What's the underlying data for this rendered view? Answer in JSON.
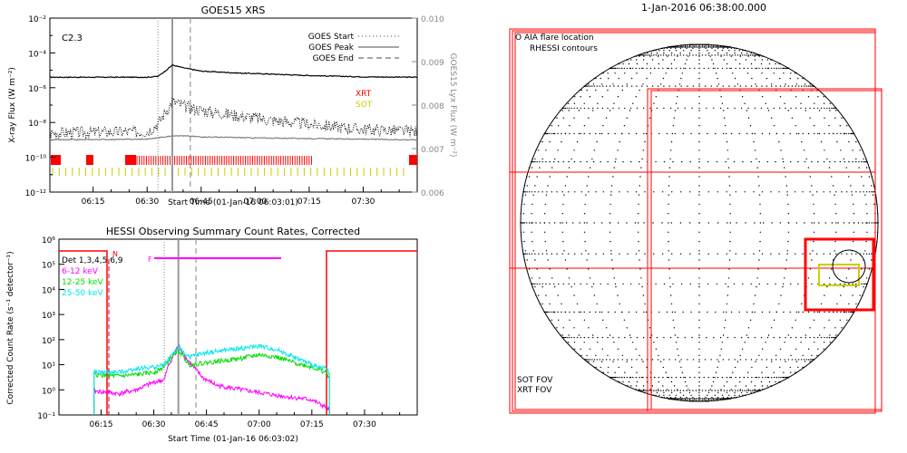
{
  "top_panel": {
    "title": "GOES15 XRS",
    "class_label": "C2.3",
    "ylabel": "X-ray Flux (W m⁻²)",
    "y2label": "GOES15 Lyx Flux (W m⁻²)",
    "xlabel": "Start Time (01-Jan-16 06:03:01)",
    "legend": [
      "GOES Start",
      "GOES Peak",
      "GOES End"
    ],
    "inst_labels": [
      "XRT",
      "SOT"
    ],
    "y_ticks": [
      "10⁻²",
      "10⁻⁴",
      "10⁻⁶",
      "10⁻⁸",
      "10⁻¹⁰",
      "10⁻¹²"
    ],
    "y2_ticks": [
      "0.010",
      "0.009",
      "0.008",
      "0.007",
      "0.006"
    ],
    "x_ticks": [
      "06:15",
      "06:30",
      "06:45",
      "07:00",
      "07:15",
      "07:30"
    ]
  },
  "bottom_panel": {
    "title": "HESSI Observing Summary Count Rates, Corrected",
    "ylabel": "Corrected Count Rate (s⁻¹ detector⁻¹)",
    "xlabel": "Start Time (01-Jan-16 06:03:02)",
    "det_label": "Det 1,3,4,5,6,9",
    "n_label": "N",
    "f_label": "F",
    "legend": [
      {
        "name": "6-12 keV",
        "color": "#ff00ff"
      },
      {
        "name": "12-25 keV",
        "color": "#00dd00"
      },
      {
        "name": "25-50 keV",
        "color": "#00e5ee"
      }
    ],
    "y_ticks": [
      "10⁶",
      "10⁵",
      "10⁴",
      "10³",
      "10²",
      "10¹",
      "10⁰",
      "10⁻¹"
    ],
    "x_ticks": [
      "06:15",
      "06:30",
      "06:45",
      "07:00",
      "07:15",
      "07:30"
    ]
  },
  "sun_panel": {
    "title": "1-Jan-2016 06:38:00.000",
    "legend_top": [
      "O AIA flare location",
      "RHESSI contours"
    ],
    "legend_bottom": [
      {
        "name": "SOT FOV",
        "color": "#cccc00"
      },
      {
        "name": "XRT FOV",
        "color": "#ff0000"
      }
    ]
  },
  "chart_data": [
    {
      "type": "line",
      "title": "GOES15 XRS",
      "xlabel": "Start Time (01-Jan-16 06:03:01)",
      "ylabel": "X-ray Flux (W m-2)",
      "y_scale": "log",
      "ylim": [
        1e-12,
        0.01
      ],
      "y2label": "GOES15 Lyx Flux (W m-2)",
      "y2lim": [
        0.006,
        0.01
      ],
      "x_range": [
        "06:03",
        "07:45"
      ],
      "markers": {
        "goes_start": "06:33",
        "goes_peak": "06:37",
        "goes_end": "06:42"
      },
      "flare_class": "C2.3",
      "series": [
        {
          "name": "",
          "color": "#000000",
          "style": "solid",
          "x": [
            "06:03",
            "06:30",
            "06:33",
            "06:35",
            "06:37",
            "06:40",
            "06:45",
            "06:55",
            "07:05",
            "07:15",
            "07:30",
            "07:45"
          ],
          "y": [
            4e-06,
            4e-06,
            4.5e-06,
            9e-06,
            2e-05,
            1.4e-05,
            9e-06,
            7e-06,
            6e-06,
            5e-06,
            4.2e-06,
            4e-06
          ]
        },
        {
          "name": "",
          "color": "#000000",
          "style": "dotted",
          "x": [
            "06:03",
            "06:30",
            "06:33",
            "06:35",
            "06:37",
            "06:40",
            "06:45",
            "06:55",
            "07:05",
            "07:15",
            "07:30",
            "07:45"
          ],
          "y": [
            2.5e-09,
            3e-09,
            8e-09,
            4e-08,
            1.6e-07,
            9e-08,
            5e-08,
            2.5e-08,
            1.3e-08,
            8e-09,
            4e-09,
            3e-09
          ]
        },
        {
          "name": "",
          "color": "#808080",
          "style": "solid",
          "x": [
            "06:03",
            "06:30",
            "06:35",
            "06:38",
            "06:45",
            "07:00",
            "07:15",
            "07:30",
            "07:45"
          ],
          "y": [
            1e-09,
            1.1e-09,
            1.5e-09,
            1.8e-09,
            1.5e-09,
            1.3e-09,
            1.2e-09,
            1.1e-09,
            1e-09
          ]
        }
      ]
    },
    {
      "type": "line",
      "title": "HESSI Observing Summary Count Rates, Corrected",
      "xlabel": "Start Time (01-Jan-16 06:03:02)",
      "ylabel": "Corrected Count Rate (s-1 detector-1)",
      "y_scale": "log",
      "ylim": [
        0.1,
        1000000
      ],
      "x_range": [
        "06:03",
        "07:45"
      ],
      "series": [
        {
          "name": "6-12 keV",
          "color": "#ff00ff",
          "x": [
            "06:13",
            "06:20",
            "06:25",
            "06:30",
            "06:33",
            "06:34",
            "06:36",
            "06:37",
            "06:39",
            "06:41",
            "06:44",
            "06:48",
            "06:55",
            "07:05",
            "07:15",
            "07:19",
            "07:20"
          ],
          "y": [
            0.9,
            0.7,
            1.0,
            2.0,
            2.5,
            8,
            30,
            60,
            20,
            9,
            3,
            1.5,
            1.0,
            0.6,
            0.4,
            0.2,
            0.15
          ]
        },
        {
          "name": "12-25 keV",
          "color": "#00dd00",
          "x": [
            "06:13",
            "06:20",
            "06:25",
            "06:30",
            "06:33",
            "06:35",
            "06:37",
            "06:40",
            "06:45",
            "06:55",
            "07:00",
            "07:05",
            "07:10",
            "07:15",
            "07:19",
            "07:20"
          ],
          "y": [
            4,
            3.5,
            4,
            5,
            8,
            20,
            40,
            10,
            12,
            18,
            25,
            20,
            12,
            8,
            5,
            3
          ]
        },
        {
          "name": "25-50 keV",
          "color": "#00e5ee",
          "x": [
            "06:13",
            "06:20",
            "06:25",
            "06:30",
            "06:33",
            "06:35",
            "06:37",
            "06:40",
            "06:45",
            "06:55",
            "07:00",
            "07:05",
            "07:10",
            "07:15",
            "07:19",
            "07:20"
          ],
          "y": [
            5,
            5,
            7,
            8,
            10,
            25,
            50,
            20,
            30,
            45,
            55,
            40,
            20,
            10,
            7,
            5
          ]
        }
      ]
    }
  ]
}
